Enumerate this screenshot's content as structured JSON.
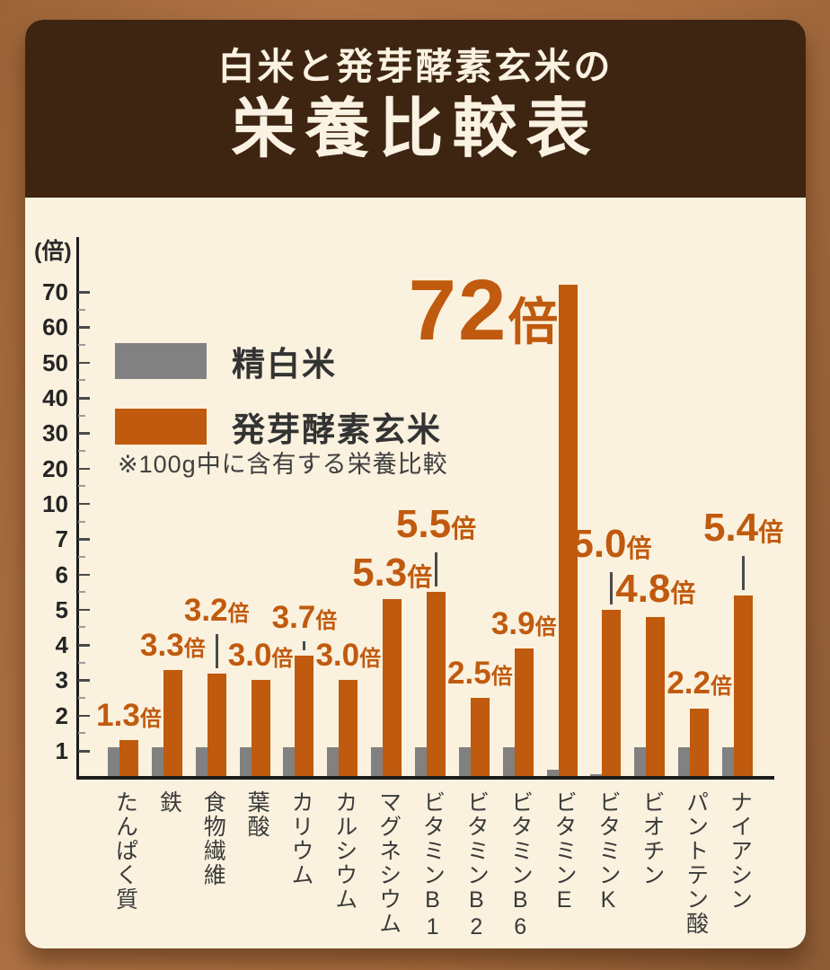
{
  "title": {
    "line1": "白米と発芽酵素玄米の",
    "line2": "栄養比較表"
  },
  "legend": {
    "white_rice": "精白米",
    "brown_rice": "発芽酵素玄米"
  },
  "note": "※100g中に含有する栄養比較",
  "y_axis_unit": "(倍)",
  "colors": {
    "accent_orange": "#C05A0E",
    "bar_gray": "#818181",
    "panel_cream": "#FAF1DE",
    "header_brown": "#3E2512",
    "background_brown": "#A96F3F"
  },
  "chart_data": {
    "type": "bar",
    "title": "白米と発芽酵素玄米の栄養比較表",
    "subtitle": "※100g中に含有する栄養比較",
    "ylabel": "(倍)",
    "y_ticks": [
      1,
      2,
      3,
      4,
      5,
      6,
      7,
      10,
      20,
      30,
      40,
      50,
      60,
      70
    ],
    "y_scale": "segmented (equal spacing between listed ticks)",
    "grid": false,
    "legend_position": "upper-left",
    "categories": [
      "たんぱく質",
      "鉄",
      "食物繊維",
      "葉酸",
      "カリウム",
      "カルシウム",
      "マグネシウム",
      "ビタミンB1",
      "ビタミンB2",
      "ビタミンB6",
      "ビタミンE",
      "ビタミンK",
      "ビオチン",
      "パントテン酸",
      "ナイアシン"
    ],
    "series": [
      {
        "name": "精白米",
        "color": "#818181",
        "values": [
          1.1,
          1.1,
          1.1,
          1.1,
          1.1,
          1.1,
          1.1,
          1.1,
          1.1,
          1.1,
          0.25,
          0.07,
          1.1,
          1.1,
          1.1
        ]
      },
      {
        "name": "発芽酵素玄米",
        "color": "#C05A0E",
        "values": [
          1.3,
          3.3,
          3.2,
          3.0,
          3.7,
          3.0,
          5.3,
          5.5,
          2.5,
          3.9,
          72,
          5.0,
          4.8,
          2.2,
          5.4
        ]
      }
    ],
    "value_labels": [
      {
        "num": "1.3",
        "suffix": "倍",
        "size": "m",
        "line": false,
        "lift": 7,
        "big": false
      },
      {
        "num": "3.3",
        "suffix": "倍",
        "size": "m",
        "line": false,
        "lift": 7,
        "big": false
      },
      {
        "num": "3.2",
        "suffix": "倍",
        "size": "m",
        "line": true,
        "lift": 50,
        "big": false
      },
      {
        "num": "3.0",
        "suffix": "倍",
        "size": "m",
        "line": false,
        "lift": 7,
        "big": false
      },
      {
        "num": "3.7",
        "suffix": "倍",
        "size": "m",
        "line": true,
        "lift": 22,
        "big": false
      },
      {
        "num": "3.0",
        "suffix": "倍",
        "size": "m",
        "line": false,
        "lift": 7,
        "big": false
      },
      {
        "num": "5.3",
        "suffix": "倍",
        "size": "l",
        "line": false,
        "lift": 4,
        "big": false
      },
      {
        "num": "5.5",
        "suffix": "倍",
        "size": "l",
        "line": true,
        "lift": 50,
        "big": false
      },
      {
        "num": "2.5",
        "suffix": "倍",
        "size": "m",
        "line": false,
        "lift": 7,
        "big": false
      },
      {
        "num": "3.9",
        "suffix": "倍",
        "size": "m",
        "line": false,
        "lift": 7,
        "big": false
      },
      {
        "num": "72",
        "suffix": "倍",
        "size": "xl",
        "line": false,
        "lift": 0,
        "big": true
      },
      {
        "num": "5.0",
        "suffix": "倍",
        "size": "l",
        "line": true,
        "lift": 48,
        "big": false
      },
      {
        "num": "4.8",
        "suffix": "倍",
        "size": "l",
        "line": false,
        "lift": 6,
        "big": false
      },
      {
        "num": "2.2",
        "suffix": "倍",
        "size": "m",
        "line": false,
        "lift": 8,
        "big": false
      },
      {
        "num": "5.4",
        "suffix": "倍",
        "size": "l",
        "line": true,
        "lift": 50,
        "big": false
      }
    ]
  }
}
